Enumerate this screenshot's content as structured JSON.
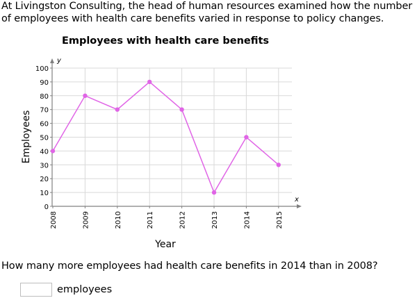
{
  "intro_text": "At Livingston Consulting, the head of human resources examined how the number of employees with health care benefits varied in response to policy changes.",
  "question_text": "How many more employees had health care benefits in 2014 than in 2008?",
  "answer": {
    "value": "",
    "unit": "employees"
  },
  "colors": {
    "line": "#e065e6",
    "grid": "#d9d9d9",
    "axis": "#808080"
  },
  "chart_data": {
    "type": "line",
    "title": "Employees with health care benefits",
    "xlabel": "Year",
    "ylabel": "Employees",
    "x_axis_letter": "x",
    "y_axis_letter": "y",
    "categories": [
      "2008",
      "2009",
      "2010",
      "2011",
      "2012",
      "2013",
      "2014",
      "2015"
    ],
    "values": [
      40,
      80,
      70,
      90,
      70,
      10,
      50,
      30
    ],
    "ylim": [
      0,
      100
    ],
    "yticks": [
      0,
      10,
      20,
      30,
      40,
      50,
      60,
      70,
      80,
      90,
      100
    ],
    "grid": true
  }
}
